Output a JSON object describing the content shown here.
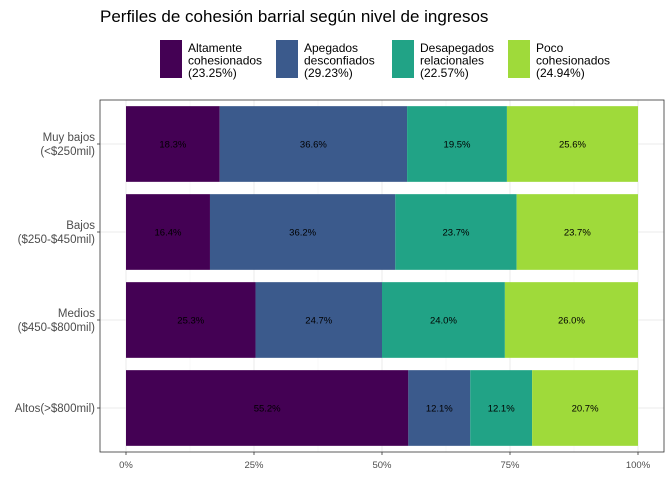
{
  "chart_data": {
    "type": "bar",
    "orientation": "horizontal",
    "stacked": "percent",
    "title": "Perfiles de cohesión barrial según nivel de ingresos",
    "xlabel": "",
    "ylabel": "",
    "xlim": [
      0,
      100
    ],
    "x_ticks": [
      "0%",
      "25%",
      "50%",
      "75%",
      "100%"
    ],
    "grid": true,
    "legend_position": "top",
    "categories": [
      [
        "Muy bajos",
        "(<$250mil)"
      ],
      [
        "Bajos",
        "($250-$450mil)"
      ],
      [
        "Medios",
        "($450-$800mil)"
      ],
      [
        "Altos(>$800mil)"
      ]
    ],
    "series": [
      {
        "name": [
          "Altamente",
          "cohesionados",
          "(23.25%)"
        ],
        "color": "#440154",
        "values": [
          18.3,
          16.4,
          25.3,
          55.2
        ],
        "labels": [
          "18.3%",
          "16.4%",
          "25.3%",
          "55.2%"
        ]
      },
      {
        "name": [
          "Apegados",
          "desconfiados",
          "(29.23%)"
        ],
        "color": "#3b5a8c",
        "values": [
          36.6,
          36.2,
          24.7,
          12.1
        ],
        "labels": [
          "36.6%",
          "36.2%",
          "24.7%",
          "12.1%"
        ]
      },
      {
        "name": [
          "Desapegados",
          "relacionales",
          "(22.57%)"
        ],
        "color": "#21a386",
        "values": [
          19.5,
          23.7,
          24.0,
          12.1
        ],
        "labels": [
          "19.5%",
          "23.7%",
          "24.0%",
          "12.1%"
        ]
      },
      {
        "name": [
          "Poco",
          "cohesionados",
          "(24.94%)"
        ],
        "color": "#9fda3a",
        "values": [
          25.6,
          23.7,
          26.0,
          20.7
        ],
        "labels": [
          "25.6%",
          "23.7%",
          "26.0%",
          "20.7%"
        ]
      }
    ]
  }
}
